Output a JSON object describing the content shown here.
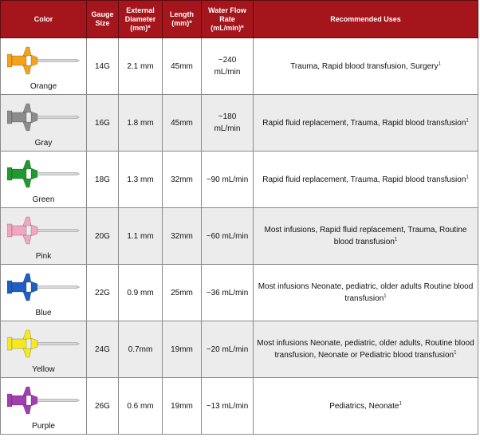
{
  "headers": {
    "color": "Color",
    "gauge": "Gauge Size",
    "diameter": "External Diameter (mm)*",
    "length": "Length (mm)*",
    "flow": "Water Flow Rate (mL/min)*",
    "uses": "Recommended Uses"
  },
  "footnote_mark": "1",
  "rows": [
    {
      "color_name": "Orange",
      "gauge": "14G",
      "diameter": "2.1 mm",
      "length": "45mm",
      "flow": "~240 mL/min",
      "uses": "Trauma, Rapid blood transfusion, Surgery",
      "hub_color": "#f4a21c",
      "icon": "catheter-orange-icon"
    },
    {
      "color_name": "Gray",
      "gauge": "16G",
      "diameter": "1.8 mm",
      "length": "45mm",
      "flow": "~180 mL/min",
      "uses": "Rapid fluid replacement, Trauma, Rapid blood transfusion",
      "hub_color": "#8c8c8c",
      "icon": "catheter-gray-icon"
    },
    {
      "color_name": "Green",
      "gauge": "18G",
      "diameter": "1.3 mm",
      "length": "32mm",
      "flow": "~90 mL/min",
      "uses": "Rapid fluid replacement, Trauma, Rapid blood transfusion",
      "hub_color": "#1f9a2e",
      "icon": "catheter-green-icon"
    },
    {
      "color_name": "Pink",
      "gauge": "20G",
      "diameter": "1.1 mm",
      "length": "32mm",
      "flow": "~60 mL/min",
      "uses": "Most infusions, Rapid fluid replacement, Trauma, Routine blood transfusion",
      "hub_color": "#f3a6c3",
      "icon": "catheter-pink-icon"
    },
    {
      "color_name": "Blue",
      "gauge": "22G",
      "diameter": "0.9 mm",
      "length": "25mm",
      "flow": "~36 mL/min",
      "uses": "Most infusions Neonate, pediatric, older adults Routine blood transfusion",
      "hub_color": "#1f5fc2",
      "icon": "catheter-blue-icon"
    },
    {
      "color_name": "Yellow",
      "gauge": "24G",
      "diameter": "0.7mm",
      "length": "19mm",
      "flow": "~20 mL/min",
      "uses": "Most infusions Neonate, pediatric, older adults, Routine blood transfusion, Neonate or Pediatric blood transfusion",
      "hub_color": "#f6ea1e",
      "icon": "catheter-yellow-icon"
    },
    {
      "color_name": "Purple",
      "gauge": "26G",
      "diameter": "0.6 mm",
      "length": "19mm",
      "flow": "~13 mL/min",
      "uses": "Pediatrics, Neonate",
      "hub_color": "#a23fb0",
      "icon": "catheter-purple-icon"
    }
  ]
}
